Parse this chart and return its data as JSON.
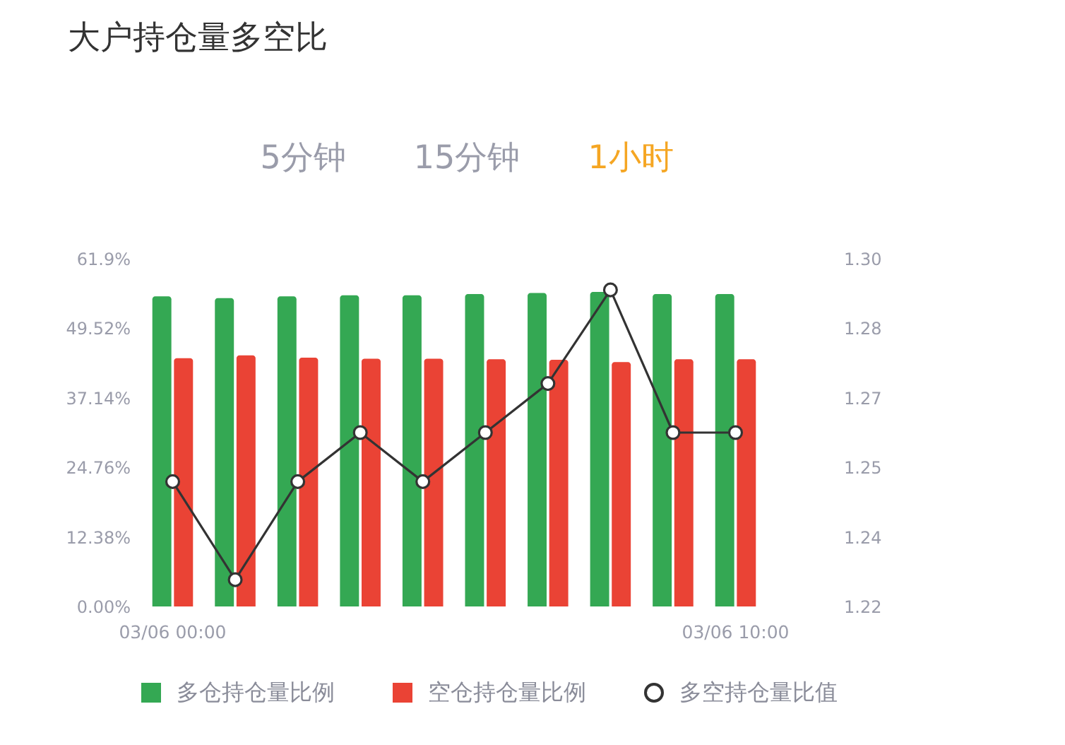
{
  "chart_data": {
    "type": "bar",
    "title": "大户持仓量多空比",
    "annotations": [
      "5分钟",
      "15分钟",
      "1小时"
    ],
    "categories": [
      "03/06 00:00",
      null,
      null,
      null,
      null,
      null,
      null,
      null,
      null,
      "03/06 10:00"
    ],
    "series": [
      {
        "name": "多仓持仓量比例",
        "color": "#34a853",
        "values": [
          55.2,
          54.9,
          55.2,
          55.4,
          55.4,
          55.6,
          55.8,
          56.0,
          55.6,
          55.6
        ]
      },
      {
        "name": "空仓持仓量比例",
        "color": "#ea4335",
        "values": [
          44.2,
          44.7,
          44.3,
          44.1,
          44.1,
          44.0,
          43.9,
          43.5,
          44.0,
          44.0
        ]
      },
      {
        "name": "多空持仓量比值",
        "type": "line",
        "axis": "y2",
        "color": "#333333",
        "values": [
          1.248,
          1.226,
          1.248,
          1.259,
          1.248,
          1.259,
          1.27,
          1.291,
          1.259,
          1.259
        ]
      }
    ],
    "marker": "circle",
    "ylim": [
      0,
      61.9
    ],
    "yticks": [
      {
        "value": 0,
        "label": "0.00%"
      },
      {
        "value": 12.38,
        "label": "12.38%"
      },
      {
        "value": 24.76,
        "label": "24.76%"
      },
      {
        "value": 37.14,
        "label": "37.14%"
      },
      {
        "value": 49.52,
        "label": "49.52%"
      },
      {
        "value": 61.9,
        "label": "61.9%"
      }
    ],
    "y2lim": [
      1.22,
      1.298
    ],
    "y2ticks": [
      1.22,
      {
        "value": 1.2356,
        "label": "1.24"
      },
      {
        "value": 1.2512,
        "label": "1.25"
      },
      {
        "value": 1.2668,
        "label": "1.27"
      },
      {
        "value": 1.2824,
        "label": "1.28"
      },
      {
        "value": 1.298,
        "label": "1.30"
      }
    ],
    "legend": "bottom"
  }
}
